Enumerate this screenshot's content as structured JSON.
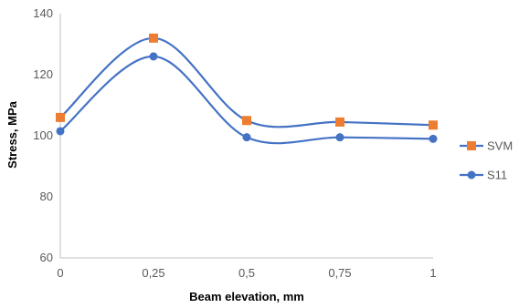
{
  "chart_data": {
    "type": "line",
    "smooth": true,
    "x": [
      0,
      0.25,
      0.5,
      0.75,
      1
    ],
    "x_tick_labels": [
      "0",
      "0,25",
      "0,5",
      "0,75",
      "1"
    ],
    "y_ticks": [
      60,
      80,
      100,
      120,
      140
    ],
    "ylim": [
      60,
      140
    ],
    "xlim": [
      0,
      1
    ],
    "xlabel": "Beam elevation, mm",
    "ylabel": "Stress, MPa",
    "grid": false,
    "legend_position": "right",
    "series": [
      {
        "name": "SVM",
        "values": [
          106,
          132,
          105,
          104.5,
          103.5
        ],
        "line_color": "#4472c4",
        "marker": "square",
        "marker_color": "#ed7d31"
      },
      {
        "name": "S11",
        "values": [
          101.5,
          126,
          99.5,
          99.5,
          99
        ],
        "line_color": "#4472c4",
        "marker": "circle",
        "marker_color": "#4472c4"
      }
    ]
  }
}
